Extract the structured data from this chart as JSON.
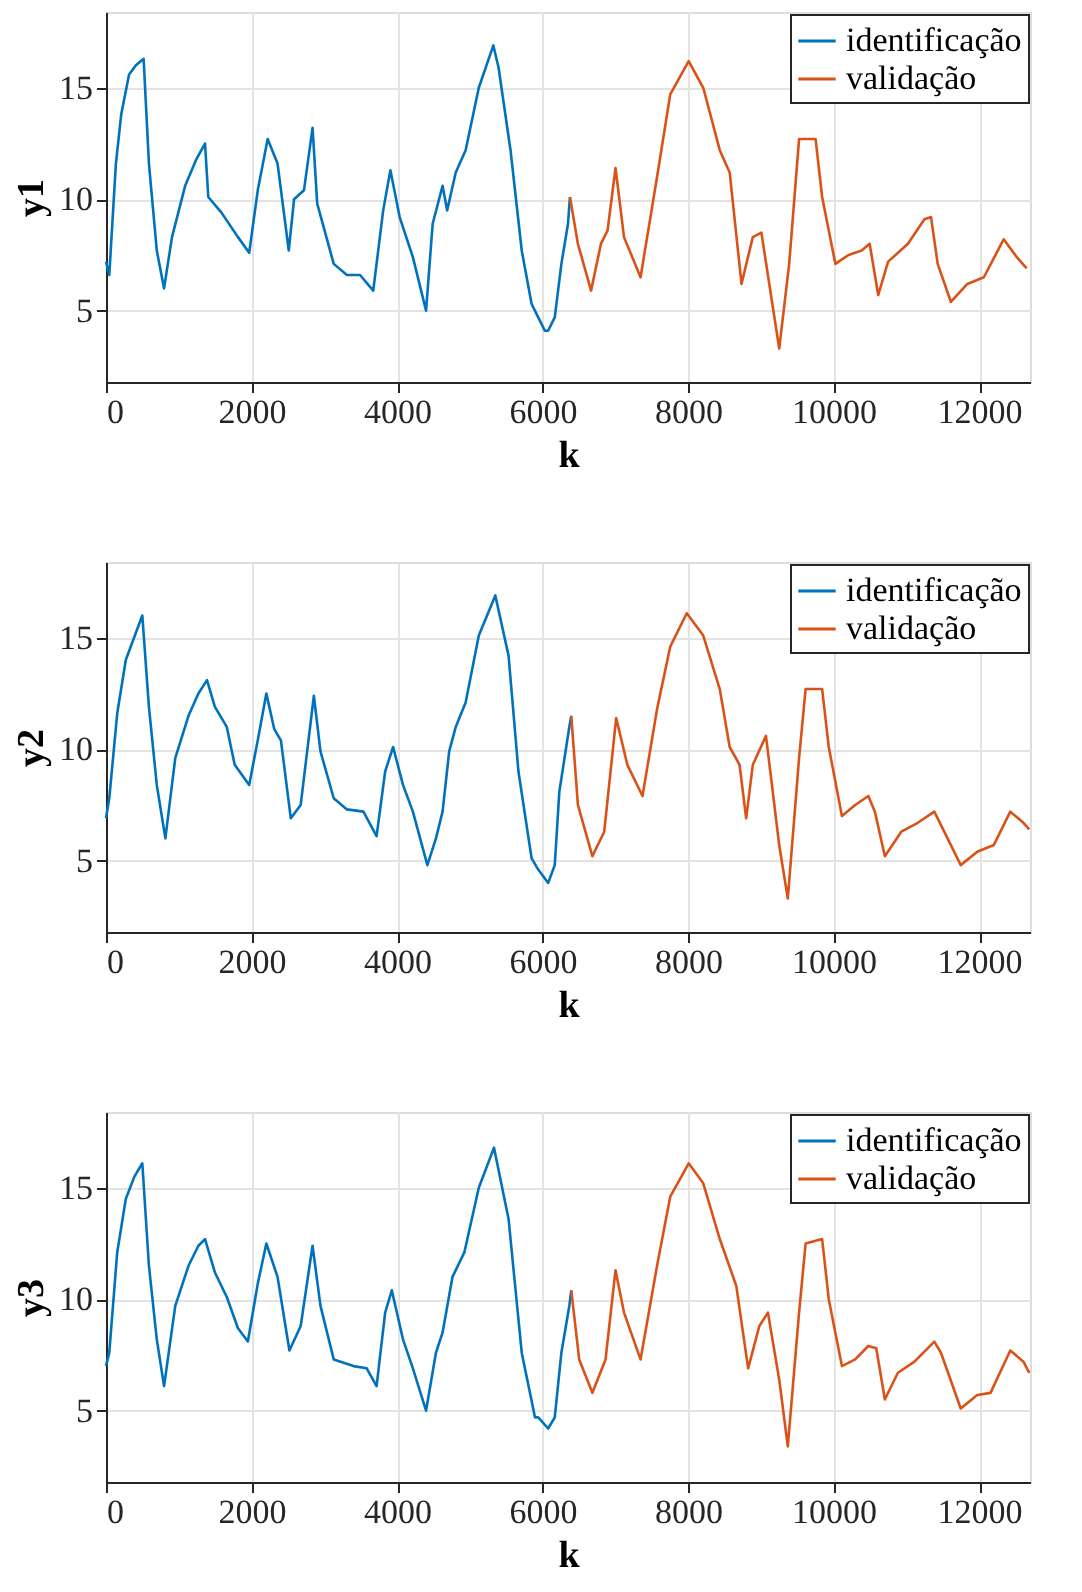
{
  "chart_data": [
    {
      "type": "line",
      "xlabel": "k",
      "ylabel": "y1",
      "xlim": [
        0,
        12700
      ],
      "ylim": [
        1.8,
        18.4
      ],
      "xticks": [
        0,
        2000,
        4000,
        6000,
        8000,
        10000,
        12000
      ],
      "yticks": [
        5,
        10,
        15
      ],
      "grid": true,
      "legend": "top right",
      "series": [
        {
          "name": "identificação",
          "color": "#0072bd",
          "x": [
            0,
            45,
            136,
            209,
            317,
            408,
            517,
            590,
            698,
            798,
            907,
            1088,
            1243,
            1361,
            1406,
            1587,
            1814,
            1968,
            2086,
            2222,
            2358,
            2512,
            2585,
            2721,
            2839,
            2903,
            3130,
            3311,
            3492,
            3673,
            3810,
            3909,
            4036,
            4218,
            4399,
            4490,
            4626,
            4689,
            4807,
            4943,
            5124,
            5324,
            5396,
            5560,
            5714,
            5850,
            5941,
            6032,
            6077,
            6168,
            6259,
            6350,
            6377
          ],
          "values": [
            7.2,
            6.6,
            11.6,
            13.8,
            15.6,
            16.0,
            16.3,
            11.6,
            7.7,
            6.0,
            8.3,
            10.6,
            11.8,
            12.5,
            10.1,
            9.4,
            8.3,
            7.6,
            10.4,
            12.7,
            11.6,
            7.7,
            10.0,
            10.4,
            13.2,
            9.8,
            7.1,
            6.6,
            6.6,
            5.9,
            9.5,
            11.3,
            9.2,
            7.4,
            5.0,
            8.9,
            10.6,
            9.5,
            11.2,
            12.2,
            15.0,
            16.9,
            15.9,
            12.2,
            7.7,
            5.3,
            4.7,
            4.1,
            4.1,
            4.7,
            7.1,
            8.9,
            10.1
          ]
        },
        {
          "name": "validação",
          "color": "#d95319",
          "x": [
            6377,
            6486,
            6667,
            6803,
            6894,
            7003,
            7120,
            7347,
            7574,
            7755,
            8009,
            8209,
            8436,
            8572,
            8735,
            8890,
            9008,
            9253,
            9390,
            9526,
            9753,
            9843,
            10025,
            10206,
            10387,
            10496,
            10614,
            10750,
            11022,
            11249,
            11340,
            11431,
            11612,
            11839,
            12066,
            12338,
            12519,
            12655
          ],
          "values": [
            10.1,
            8.0,
            5.9,
            8.0,
            8.6,
            11.4,
            8.3,
            6.5,
            11.0,
            14.7,
            16.2,
            15.0,
            12.2,
            11.2,
            6.2,
            8.3,
            8.5,
            3.3,
            7.1,
            12.7,
            12.7,
            10.1,
            7.1,
            7.5,
            7.7,
            8.0,
            5.7,
            7.2,
            8.0,
            9.1,
            9.2,
            7.1,
            5.4,
            6.2,
            6.5,
            8.2,
            7.4,
            6.9
          ]
        }
      ]
    },
    {
      "type": "line",
      "xlabel": "k",
      "ylabel": "y2",
      "xlim": [
        0,
        12700
      ],
      "ylim": [
        1.8,
        18.4
      ],
      "xticks": [
        0,
        2000,
        4000,
        6000,
        8000,
        10000,
        12000
      ],
      "yticks": [
        5,
        10,
        15
      ],
      "grid": true,
      "legend": "top right",
      "series": [
        {
          "name": "identificação",
          "color": "#0072bd",
          "x": [
            0,
            45,
            154,
            272,
            408,
            499,
            590,
            698,
            816,
            952,
            1134,
            1270,
            1388,
            1497,
            1660,
            1769,
            1968,
            2086,
            2204,
            2313,
            2404,
            2540,
            2676,
            2857,
            2948,
            3130,
            3311,
            3538,
            3719,
            3837,
            3946,
            4082,
            4218,
            4417,
            4535,
            4626,
            4717,
            4807,
            4943,
            5124,
            5351,
            5533,
            5669,
            5850,
            5941,
            6077,
            6168,
            6231,
            6368,
            6395
          ],
          "values": [
            6.9,
            7.8,
            11.6,
            14.0,
            15.2,
            16.0,
            11.9,
            8.4,
            6.0,
            9.6,
            11.5,
            12.5,
            13.1,
            11.9,
            11.0,
            9.3,
            8.4,
            10.4,
            12.5,
            10.9,
            10.4,
            6.9,
            7.5,
            12.4,
            9.9,
            7.8,
            7.3,
            7.2,
            6.1,
            9.0,
            10.1,
            8.4,
            7.2,
            4.8,
            6.0,
            7.2,
            9.9,
            11.0,
            12.1,
            15.1,
            16.9,
            14.2,
            9.0,
            5.1,
            4.6,
            4.0,
            4.8,
            8.1,
            11.0,
            11.5
          ]
        },
        {
          "name": "validação",
          "color": "#d95319",
          "x": [
            6395,
            6486,
            6685,
            6848,
            7012,
            7166,
            7374,
            7574,
            7755,
            7982,
            8209,
            8436,
            8572,
            8708,
            8799,
            8890,
            9071,
            9253,
            9371,
            9526,
            9616,
            9843,
            9934,
            10115,
            10297,
            10478,
            10568,
            10705,
            10931,
            11158,
            11385,
            11521,
            11748,
            11975,
            12202,
            12429,
            12610,
            12690
          ],
          "values": [
            11.5,
            7.5,
            5.2,
            6.3,
            11.4,
            9.3,
            7.9,
            11.8,
            14.6,
            16.1,
            15.1,
            12.7,
            10.1,
            9.3,
            6.9,
            9.3,
            10.6,
            5.7,
            3.3,
            9.6,
            12.7,
            12.7,
            10.1,
            7.0,
            7.5,
            7.9,
            7.2,
            5.2,
            6.3,
            6.7,
            7.2,
            6.3,
            4.8,
            5.4,
            5.7,
            7.2,
            6.7,
            6.4
          ]
        }
      ]
    },
    {
      "type": "line",
      "xlabel": "k",
      "ylabel": "y3",
      "xlim": [
        0,
        12700
      ],
      "ylim": [
        1.8,
        18.4
      ],
      "xticks": [
        0,
        2000,
        4000,
        6000,
        8000,
        10000,
        12000
      ],
      "yticks": [
        5,
        10,
        15
      ],
      "grid": true,
      "legend": "top right",
      "series": [
        {
          "name": "identificação",
          "color": "#0072bd",
          "x": [
            0,
            45,
            154,
            272,
            390,
            499,
            590,
            698,
            798,
            952,
            1134,
            1270,
            1361,
            1497,
            1660,
            1814,
            1950,
            2086,
            2204,
            2358,
            2521,
            2676,
            2839,
            2948,
            3130,
            3402,
            3583,
            3719,
            3837,
            3928,
            4082,
            4218,
            4399,
            4535,
            4626,
            4762,
            4925,
            5124,
            5333,
            5533,
            5714,
            5896,
            5941,
            6077,
            6168,
            6259,
            6368,
            6395
          ],
          "values": [
            7.0,
            7.6,
            12.1,
            14.5,
            15.5,
            16.1,
            11.5,
            8.2,
            6.1,
            9.7,
            11.5,
            12.4,
            12.7,
            11.2,
            10.1,
            8.7,
            8.1,
            10.7,
            12.5,
            11.0,
            7.7,
            8.8,
            12.4,
            9.7,
            7.3,
            7.0,
            6.9,
            6.1,
            9.4,
            10.4,
            8.2,
            6.9,
            5.0,
            7.6,
            8.5,
            11.0,
            12.1,
            15.0,
            16.8,
            13.6,
            7.6,
            4.7,
            4.7,
            4.2,
            4.7,
            7.6,
            9.7,
            10.4
          ]
        },
        {
          "name": "validação",
          "color": "#d95319",
          "x": [
            6395,
            6504,
            6685,
            6866,
            7003,
            7120,
            7347,
            7574,
            7755,
            8009,
            8209,
            8436,
            8663,
            8826,
            8980,
            9098,
            9253,
            9371,
            9526,
            9616,
            9843,
            9934,
            10115,
            10297,
            10478,
            10587,
            10705,
            10884,
            11112,
            11385,
            11476,
            11748,
            11975,
            12157,
            12429,
            12610,
            12690
          ],
          "values": [
            10.4,
            7.3,
            5.8,
            7.3,
            11.3,
            9.4,
            7.3,
            11.5,
            14.6,
            16.1,
            15.2,
            12.7,
            10.6,
            6.9,
            8.8,
            9.4,
            6.4,
            3.4,
            9.4,
            12.5,
            12.7,
            10.0,
            7.0,
            7.3,
            7.9,
            7.8,
            5.5,
            6.7,
            7.2,
            8.1,
            7.6,
            5.1,
            5.7,
            5.8,
            7.7,
            7.2,
            6.7
          ]
        }
      ]
    }
  ]
}
